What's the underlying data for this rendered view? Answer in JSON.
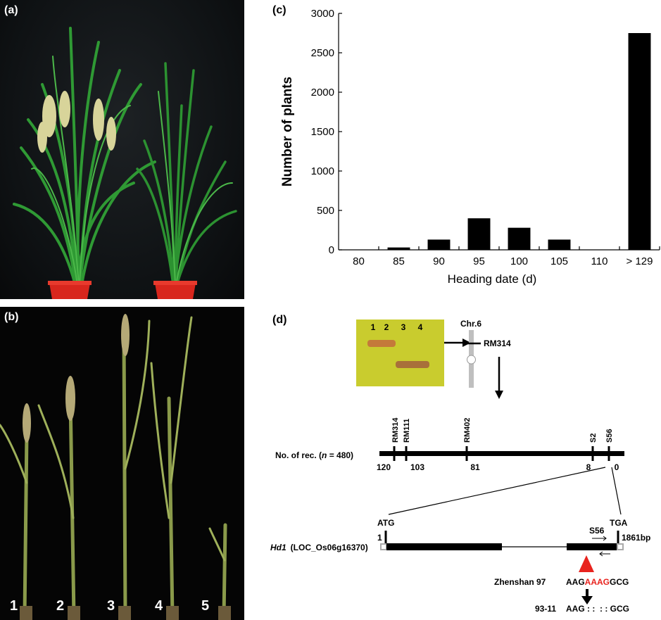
{
  "panels": {
    "a": {
      "label": "(a)"
    },
    "b": {
      "label": "(b)",
      "plant_numbers": [
        "1",
        "2",
        "3",
        "4",
        "5"
      ]
    },
    "c": {
      "label": "(c)"
    },
    "d": {
      "label": "(d)"
    }
  },
  "chart_data": {
    "type": "bar",
    "categories": [
      "80",
      "85",
      "90",
      "95",
      "100",
      "105",
      "110",
      "> 129"
    ],
    "values": [
      0,
      30,
      130,
      400,
      280,
      130,
      0,
      2750
    ],
    "xlabel": "Heading date (d)",
    "ylabel": "Number of plants",
    "ylim": [
      0,
      3000
    ],
    "yticks": [
      "0",
      "500",
      "1000",
      "1500",
      "2000",
      "2500",
      "3000"
    ],
    "bar_color": "#000000"
  },
  "diagram": {
    "gel_lanes": [
      "1",
      "2",
      "3",
      "4"
    ],
    "chromosome_label": "Chr.6",
    "chromosome_marker": "RM314",
    "marker_names": [
      "RM314",
      "RM111",
      "RM402",
      "S2",
      "S56"
    ],
    "rec_label_prefix": "No. of rec. (",
    "rec_label_n": "n",
    "rec_label_suffix": " = 480)",
    "rec_counts": [
      "120",
      "103",
      "81",
      "8",
      "0"
    ],
    "start_codon": "ATG",
    "stop_codon": "TGA",
    "gene_start": "1",
    "gene_end": "1861bp",
    "gene_name": "Hd1",
    "gene_locus": "(LOC_Os06g16370)",
    "primer_label": "S56",
    "variety1": "Zhenshan 97",
    "seq1_prefix": "AAG",
    "seq1_insert": "AAAG",
    "seq1_suffix": "GCG",
    "variety2": "93-11",
    "seq2": "AAG : :  : : GCG",
    "highlight_color": "#e8231e",
    "gel_color": "#c9cc2e"
  }
}
